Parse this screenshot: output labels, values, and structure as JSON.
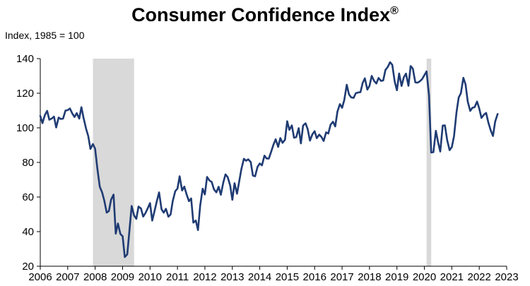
{
  "chart_data": {
    "type": "line",
    "title": "Consumer Confidence Index",
    "title_mark": "®",
    "ylabel": "Index, 1985 = 100",
    "xlabel": "",
    "xlim": [
      2006,
      2023
    ],
    "ylim": [
      20,
      140
    ],
    "yticks": [
      20,
      40,
      60,
      80,
      100,
      120,
      140
    ],
    "xticks": [
      2006,
      2007,
      2008,
      2009,
      2010,
      2011,
      2012,
      2013,
      2014,
      2015,
      2016,
      2017,
      2018,
      2019,
      2020,
      2021,
      2022,
      2023
    ],
    "grid": false,
    "legend": "none",
    "line_color": "#1f3b73",
    "recession_color": "#d9d9d9",
    "recessions": [
      [
        2007.92,
        2009.42
      ],
      [
        2020.08,
        2020.25
      ]
    ],
    "series": [
      {
        "x": [
          2006.0,
          2006.08,
          2006.17,
          2006.25,
          2006.33,
          2006.42,
          2006.5,
          2006.58,
          2006.67,
          2006.75,
          2006.83,
          2006.92,
          2007.0,
          2007.08,
          2007.17,
          2007.25,
          2007.33,
          2007.42,
          2007.5,
          2007.58,
          2007.67,
          2007.75,
          2007.83,
          2007.92,
          2008.0,
          2008.08,
          2008.17,
          2008.25,
          2008.33,
          2008.42,
          2008.5,
          2008.58,
          2008.67,
          2008.75,
          2008.83,
          2008.92,
          2009.0,
          2009.08,
          2009.17,
          2009.25,
          2009.33,
          2009.42,
          2009.5,
          2009.58,
          2009.67,
          2009.75,
          2009.83,
          2009.92,
          2010.0,
          2010.08,
          2010.17,
          2010.25,
          2010.33,
          2010.42,
          2010.5,
          2010.58,
          2010.67,
          2010.75,
          2010.83,
          2010.92,
          2011.0,
          2011.08,
          2011.17,
          2011.25,
          2011.33,
          2011.42,
          2011.5,
          2011.58,
          2011.67,
          2011.75,
          2011.83,
          2011.92,
          2012.0,
          2012.08,
          2012.17,
          2012.25,
          2012.33,
          2012.42,
          2012.5,
          2012.58,
          2012.67,
          2012.75,
          2012.83,
          2012.92,
          2013.0,
          2013.08,
          2013.17,
          2013.25,
          2013.33,
          2013.42,
          2013.5,
          2013.58,
          2013.67,
          2013.75,
          2013.83,
          2013.92,
          2014.0,
          2014.08,
          2014.17,
          2014.25,
          2014.33,
          2014.42,
          2014.5,
          2014.58,
          2014.67,
          2014.75,
          2014.83,
          2014.92,
          2015.0,
          2015.08,
          2015.17,
          2015.25,
          2015.33,
          2015.42,
          2015.5,
          2015.58,
          2015.67,
          2015.75,
          2015.83,
          2015.92,
          2016.0,
          2016.08,
          2016.17,
          2016.25,
          2016.33,
          2016.42,
          2016.5,
          2016.58,
          2016.67,
          2016.75,
          2016.83,
          2016.92,
          2017.0,
          2017.08,
          2017.17,
          2017.25,
          2017.33,
          2017.42,
          2017.5,
          2017.58,
          2017.67,
          2017.75,
          2017.83,
          2017.92,
          2018.0,
          2018.08,
          2018.17,
          2018.25,
          2018.33,
          2018.42,
          2018.5,
          2018.58,
          2018.67,
          2018.75,
          2018.83,
          2018.92,
          2019.0,
          2019.08,
          2019.17,
          2019.25,
          2019.33,
          2019.42,
          2019.5,
          2019.58,
          2019.67,
          2019.75,
          2019.83,
          2019.92,
          2020.0,
          2020.08,
          2020.17,
          2020.25,
          2020.33,
          2020.42,
          2020.5,
          2020.58,
          2020.67,
          2020.75,
          2020.83,
          2020.92,
          2021.0,
          2021.08,
          2021.17,
          2021.25,
          2021.33,
          2021.42,
          2021.5,
          2021.58,
          2021.67,
          2021.75,
          2021.83,
          2021.92,
          2022.0,
          2022.08,
          2022.17,
          2022.25,
          2022.33,
          2022.42,
          2022.5,
          2022.58,
          2022.67
        ],
        "values": [
          106.8,
          102.7,
          107.5,
          109.8,
          104.7,
          105.4,
          106.5,
          100.2,
          105.9,
          105.1,
          105.3,
          110.0,
          110.2,
          111.2,
          108.2,
          106.3,
          108.5,
          105.3,
          111.9,
          105.6,
          99.5,
          95.2,
          87.8,
          90.6,
          87.9,
          76.4,
          65.9,
          62.8,
          58.1,
          51.0,
          51.9,
          58.5,
          61.4,
          38.8,
          44.7,
          38.6,
          37.4,
          25.3,
          26.9,
          40.8,
          54.8,
          49.3,
          47.4,
          54.5,
          53.4,
          48.7,
          50.6,
          53.6,
          56.5,
          46.4,
          52.3,
          57.7,
          62.7,
          52.9,
          51.0,
          53.2,
          48.6,
          49.9,
          57.8,
          63.4,
          64.8,
          72.0,
          63.8,
          66.0,
          61.7,
          57.6,
          59.2,
          45.2,
          46.4,
          40.9,
          55.2,
          64.8,
          61.5,
          71.6,
          69.5,
          68.7,
          64.4,
          62.7,
          65.9,
          61.3,
          68.4,
          73.1,
          71.5,
          66.7,
          58.4,
          68.0,
          61.9,
          69.0,
          76.2,
          82.1,
          81.0,
          81.8,
          80.2,
          72.4,
          72.0,
          77.5,
          79.4,
          78.3,
          83.9,
          82.3,
          82.2,
          86.4,
          90.3,
          93.4,
          89.0,
          94.1,
          91.3,
          93.1,
          103.8,
          98.8,
          101.4,
          94.3,
          94.6,
          99.8,
          91.0,
          101.3,
          102.6,
          99.1,
          92.6,
          96.3,
          98.1,
          94.0,
          96.1,
          94.7,
          92.4,
          97.4,
          96.7,
          101.8,
          103.5,
          100.8,
          109.4,
          113.7,
          111.6,
          116.1,
          124.9,
          119.4,
          117.6,
          117.3,
          120.0,
          120.4,
          120.6,
          125.9,
          128.6,
          122.1,
          124.3,
          130.0,
          127.0,
          125.6,
          128.8,
          127.1,
          127.4,
          133.4,
          135.3,
          137.9,
          136.4,
          126.6,
          121.7,
          131.4,
          124.2,
          129.2,
          131.3,
          124.3,
          135.7,
          134.2,
          126.3,
          126.1,
          126.8,
          128.2,
          130.4,
          132.6,
          118.8,
          85.7,
          85.9,
          98.3,
          91.7,
          86.3,
          101.3,
          101.4,
          92.9,
          87.1,
          88.9,
          95.2,
          109.0,
          117.5,
          120.0,
          128.9,
          125.1,
          115.2,
          109.8,
          111.6,
          111.9,
          115.2,
          111.1,
          105.7,
          107.6,
          108.6,
          103.2,
          98.4,
          95.3,
          103.6,
          108.0
        ]
      }
    ]
  }
}
